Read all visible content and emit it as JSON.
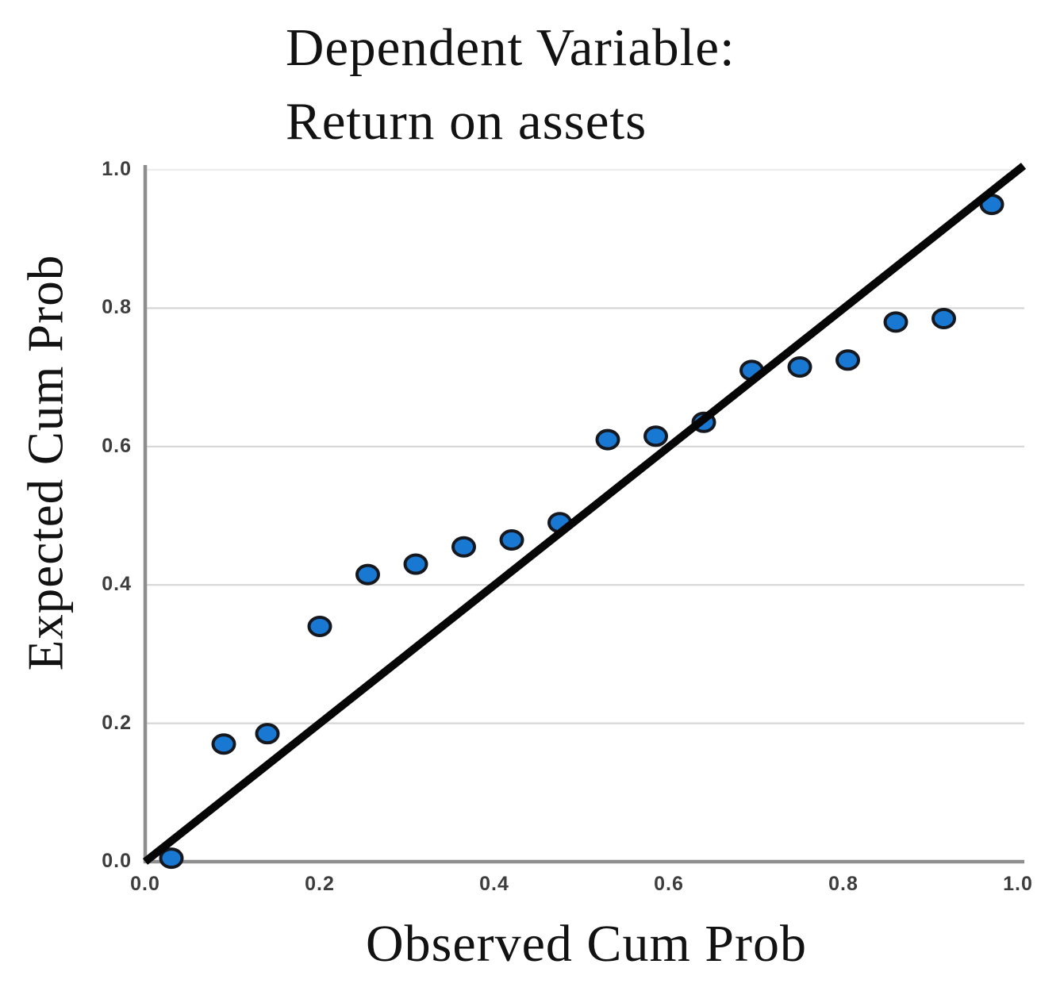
{
  "title": {
    "line1": "Dependent Variable:",
    "line2": "Return on assets"
  },
  "chart_data": {
    "type": "scatter",
    "title": "Dependent Variable: Return on assets",
    "xlabel": "Observed Cum Prob",
    "ylabel": "Expected Cum Prob",
    "xlim": [
      0.0,
      1.0
    ],
    "ylim": [
      0.0,
      1.0
    ],
    "x_tick_labels": [
      "0.0",
      "0.2",
      "0.4",
      "0.6",
      "0.8",
      "1.0"
    ],
    "y_tick_labels": [
      "0.0",
      "0.2",
      "0.4",
      "0.6",
      "0.8",
      "1.0"
    ],
    "grid": "horizontal-only",
    "legend": "none",
    "reference_line": {
      "from": [
        0.0,
        0.0
      ],
      "to": [
        1.0,
        1.0
      ],
      "style": "solid-black-diagonal"
    },
    "points": [
      {
        "x": 0.03,
        "y": 0.005
      },
      {
        "x": 0.09,
        "y": 0.17
      },
      {
        "x": 0.14,
        "y": 0.185
      },
      {
        "x": 0.2,
        "y": 0.34
      },
      {
        "x": 0.255,
        "y": 0.415
      },
      {
        "x": 0.31,
        "y": 0.43
      },
      {
        "x": 0.365,
        "y": 0.455
      },
      {
        "x": 0.42,
        "y": 0.465
      },
      {
        "x": 0.475,
        "y": 0.49
      },
      {
        "x": 0.53,
        "y": 0.61
      },
      {
        "x": 0.585,
        "y": 0.615
      },
      {
        "x": 0.64,
        "y": 0.635
      },
      {
        "x": 0.695,
        "y": 0.71
      },
      {
        "x": 0.75,
        "y": 0.715
      },
      {
        "x": 0.805,
        "y": 0.725
      },
      {
        "x": 0.86,
        "y": 0.78
      },
      {
        "x": 0.915,
        "y": 0.785
      },
      {
        "x": 0.97,
        "y": 0.95
      }
    ]
  },
  "colors": {
    "point_fill": "#1878d2",
    "point_stroke": "#15181e",
    "reference_line": "#060606",
    "axis": "#8e8e8e",
    "grid": "#d6d6d6",
    "grid_top": "#ececec",
    "tick_text": "#3d3d3d",
    "label_text": "#121212",
    "background": "#ffffff"
  }
}
